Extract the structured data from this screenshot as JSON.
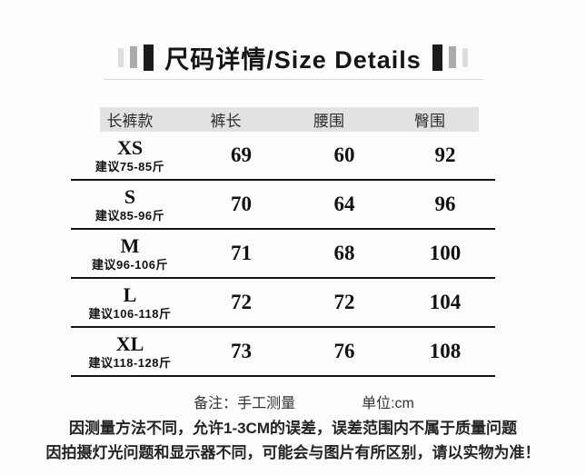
{
  "title": {
    "text": "尺码详情/Size Details"
  },
  "table": {
    "columns": [
      "长裤款",
      "裤长",
      "腰围",
      "臀围"
    ],
    "rows": [
      {
        "size": "XS",
        "suggest": "建议75-85斤",
        "length": "69",
        "waist": "60",
        "hip": "92"
      },
      {
        "size": "S",
        "suggest": "建议85-96斤",
        "length": "70",
        "waist": "64",
        "hip": "96"
      },
      {
        "size": "M",
        "suggest": "建议96-106斤",
        "length": "71",
        "waist": "68",
        "hip": "100"
      },
      {
        "size": "L",
        "suggest": "建议106-118斤",
        "length": "72",
        "waist": "72",
        "hip": "104"
      },
      {
        "size": "XL",
        "suggest": "建议118-128斤",
        "length": "73",
        "waist": "76",
        "hip": "108"
      }
    ]
  },
  "footer": {
    "note": "备注：手工测量",
    "unit": "单位:cm"
  },
  "disclaimer": {
    "line1": "因测量方法不同，允许1-3CM的误差，误差范围内不属于质量问题",
    "line2": "因拍摄灯光问题和显示器不同，可能会与图片有所区别，请以实物为准！"
  },
  "colors": {
    "header_bar_bg": "#e2e2e2",
    "row_divider": "#141414",
    "title_underline": "#dadada",
    "decor_bar_dark": "#1b1b1b",
    "decor_bar_mid": "#ababab",
    "decor_bar_light": "#dedede",
    "text": "#1c1c1c",
    "background": "#fdfdfd"
  }
}
